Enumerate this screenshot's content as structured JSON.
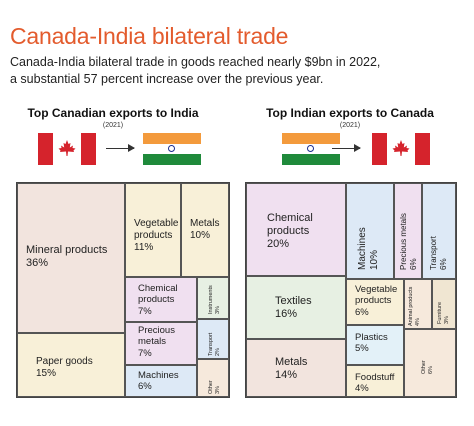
{
  "header": {
    "title": "Canada-India bilateral trade",
    "subtitle_line1": "Canada-India bilateral trade in goods reached nearly $9bn in 2022,",
    "subtitle_line2": "a substantial 57 percent increase over the previous year."
  },
  "left_panel": {
    "title": "Top Canadian exports to India",
    "year": "(2021)",
    "from_flag": "canada-flag",
    "to_flag": "india-flag"
  },
  "right_panel": {
    "title": "Top Indian exports to Canada",
    "year": "(2021)",
    "from_flag": "india-flag",
    "to_flag": "canada-flag"
  },
  "colors": {
    "title": "#e35b2d",
    "canada_red": "#d5232c",
    "india_saffron": "#f39a3c",
    "india_green": "#1f8a3b",
    "india_navy": "#1b2d8f"
  },
  "chart_data": [
    {
      "type": "treemap",
      "title": "Top Canadian exports to India",
      "items": [
        {
          "label": "Mineral products",
          "value_text": "36%",
          "value": 36
        },
        {
          "label": "Paper goods",
          "value_text": "15%",
          "value": 15
        },
        {
          "label": "Vegetable products",
          "value_text": "11%",
          "value": 11
        },
        {
          "label": "Metals",
          "value_text": "10%",
          "value": 10
        },
        {
          "label": "Chemical products",
          "value_text": "7%",
          "value": 7
        },
        {
          "label": "Precious metals",
          "value_text": "7%",
          "value": 7
        },
        {
          "label": "Machines",
          "value_text": "6%",
          "value": 6
        },
        {
          "label": "Instruments",
          "value_text": "3%",
          "value": 3
        },
        {
          "label": "Transport",
          "value_text": "2%",
          "value": 2
        },
        {
          "label": "Other",
          "value_text": "3%",
          "value": 3
        }
      ]
    },
    {
      "type": "treemap",
      "title": "Top Indian exports to Canada",
      "items": [
        {
          "label": "Chemical products",
          "value_text": "20%",
          "value": 20
        },
        {
          "label": "Textiles",
          "value_text": "16%",
          "value": 16
        },
        {
          "label": "Metals",
          "value_text": "14%",
          "value": 14
        },
        {
          "label": "Machines",
          "value_text": "10%",
          "value": 10
        },
        {
          "label": "Precious metals",
          "value_text": "6%",
          "value": 6
        },
        {
          "label": "Transport",
          "value_text": "6%",
          "value": 6
        },
        {
          "label": "Vegetable products",
          "value_text": "6%",
          "value": 6
        },
        {
          "label": "Plastics",
          "value_text": "5%",
          "value": 5
        },
        {
          "label": "Foodstuff",
          "value_text": "4%",
          "value": 4
        },
        {
          "label": "Animal products",
          "value_text": "4%",
          "value": 4
        },
        {
          "label": "Furniture",
          "value_text": "3%",
          "value": 3
        },
        {
          "label": "Other",
          "value_text": "6%",
          "value": 6
        }
      ]
    }
  ]
}
